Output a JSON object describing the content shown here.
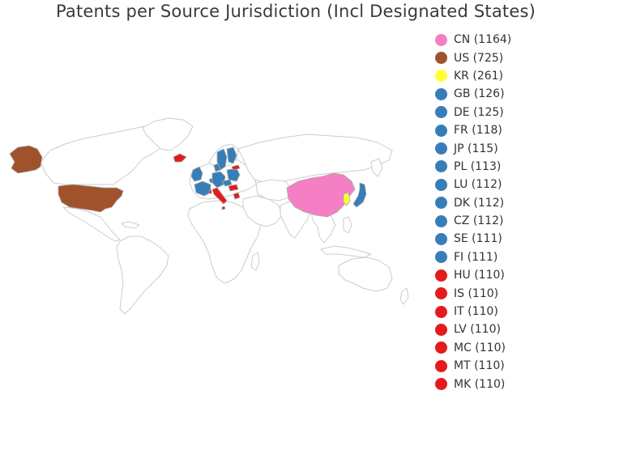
{
  "title": "Patents per Source Jurisdiction (Incl Designated States)",
  "map": {
    "land_color": "#ffffff",
    "border_color": "#cccccc",
    "highlighted": [
      {
        "code": "CN",
        "color": "#f47fc4"
      },
      {
        "code": "US",
        "color": "#a0522d"
      },
      {
        "code": "KR",
        "color": "#ffff33"
      },
      {
        "code": "GB",
        "color": "#377eb8"
      },
      {
        "code": "DE",
        "color": "#377eb8"
      },
      {
        "code": "FR",
        "color": "#377eb8"
      },
      {
        "code": "JP",
        "color": "#377eb8"
      },
      {
        "code": "PL",
        "color": "#377eb8"
      },
      {
        "code": "LU",
        "color": "#377eb8"
      },
      {
        "code": "DK",
        "color": "#377eb8"
      },
      {
        "code": "CZ",
        "color": "#377eb8"
      },
      {
        "code": "SE",
        "color": "#377eb8"
      },
      {
        "code": "FI",
        "color": "#377eb8"
      },
      {
        "code": "HU",
        "color": "#e41a1c"
      },
      {
        "code": "IS",
        "color": "#e41a1c"
      },
      {
        "code": "IT",
        "color": "#e41a1c"
      },
      {
        "code": "LV",
        "color": "#e41a1c"
      },
      {
        "code": "MC",
        "color": "#e41a1c"
      },
      {
        "code": "MT",
        "color": "#e41a1c"
      },
      {
        "code": "MK",
        "color": "#e41a1c"
      }
    ]
  },
  "legend": [
    {
      "label": "CN (1164)",
      "color": "#f47fc4"
    },
    {
      "label": "US (725)",
      "color": "#a0522d"
    },
    {
      "label": "KR (261)",
      "color": "#ffff33"
    },
    {
      "label": "GB (126)",
      "color": "#377eb8"
    },
    {
      "label": "DE (125)",
      "color": "#377eb8"
    },
    {
      "label": "FR (118)",
      "color": "#377eb8"
    },
    {
      "label": "JP (115)",
      "color": "#377eb8"
    },
    {
      "label": "PL (113)",
      "color": "#377eb8"
    },
    {
      "label": "LU (112)",
      "color": "#377eb8"
    },
    {
      "label": "DK (112)",
      "color": "#377eb8"
    },
    {
      "label": "CZ (112)",
      "color": "#377eb8"
    },
    {
      "label": "SE (111)",
      "color": "#377eb8"
    },
    {
      "label": "FI (111)",
      "color": "#377eb8"
    },
    {
      "label": "HU (110)",
      "color": "#e41a1c"
    },
    {
      "label": "IS (110)",
      "color": "#e41a1c"
    },
    {
      "label": "IT (110)",
      "color": "#e41a1c"
    },
    {
      "label": "LV (110)",
      "color": "#e41a1c"
    },
    {
      "label": "MC (110)",
      "color": "#e41a1c"
    },
    {
      "label": "MT (110)",
      "color": "#e41a1c"
    },
    {
      "label": "MK (110)",
      "color": "#e41a1c"
    }
  ]
}
